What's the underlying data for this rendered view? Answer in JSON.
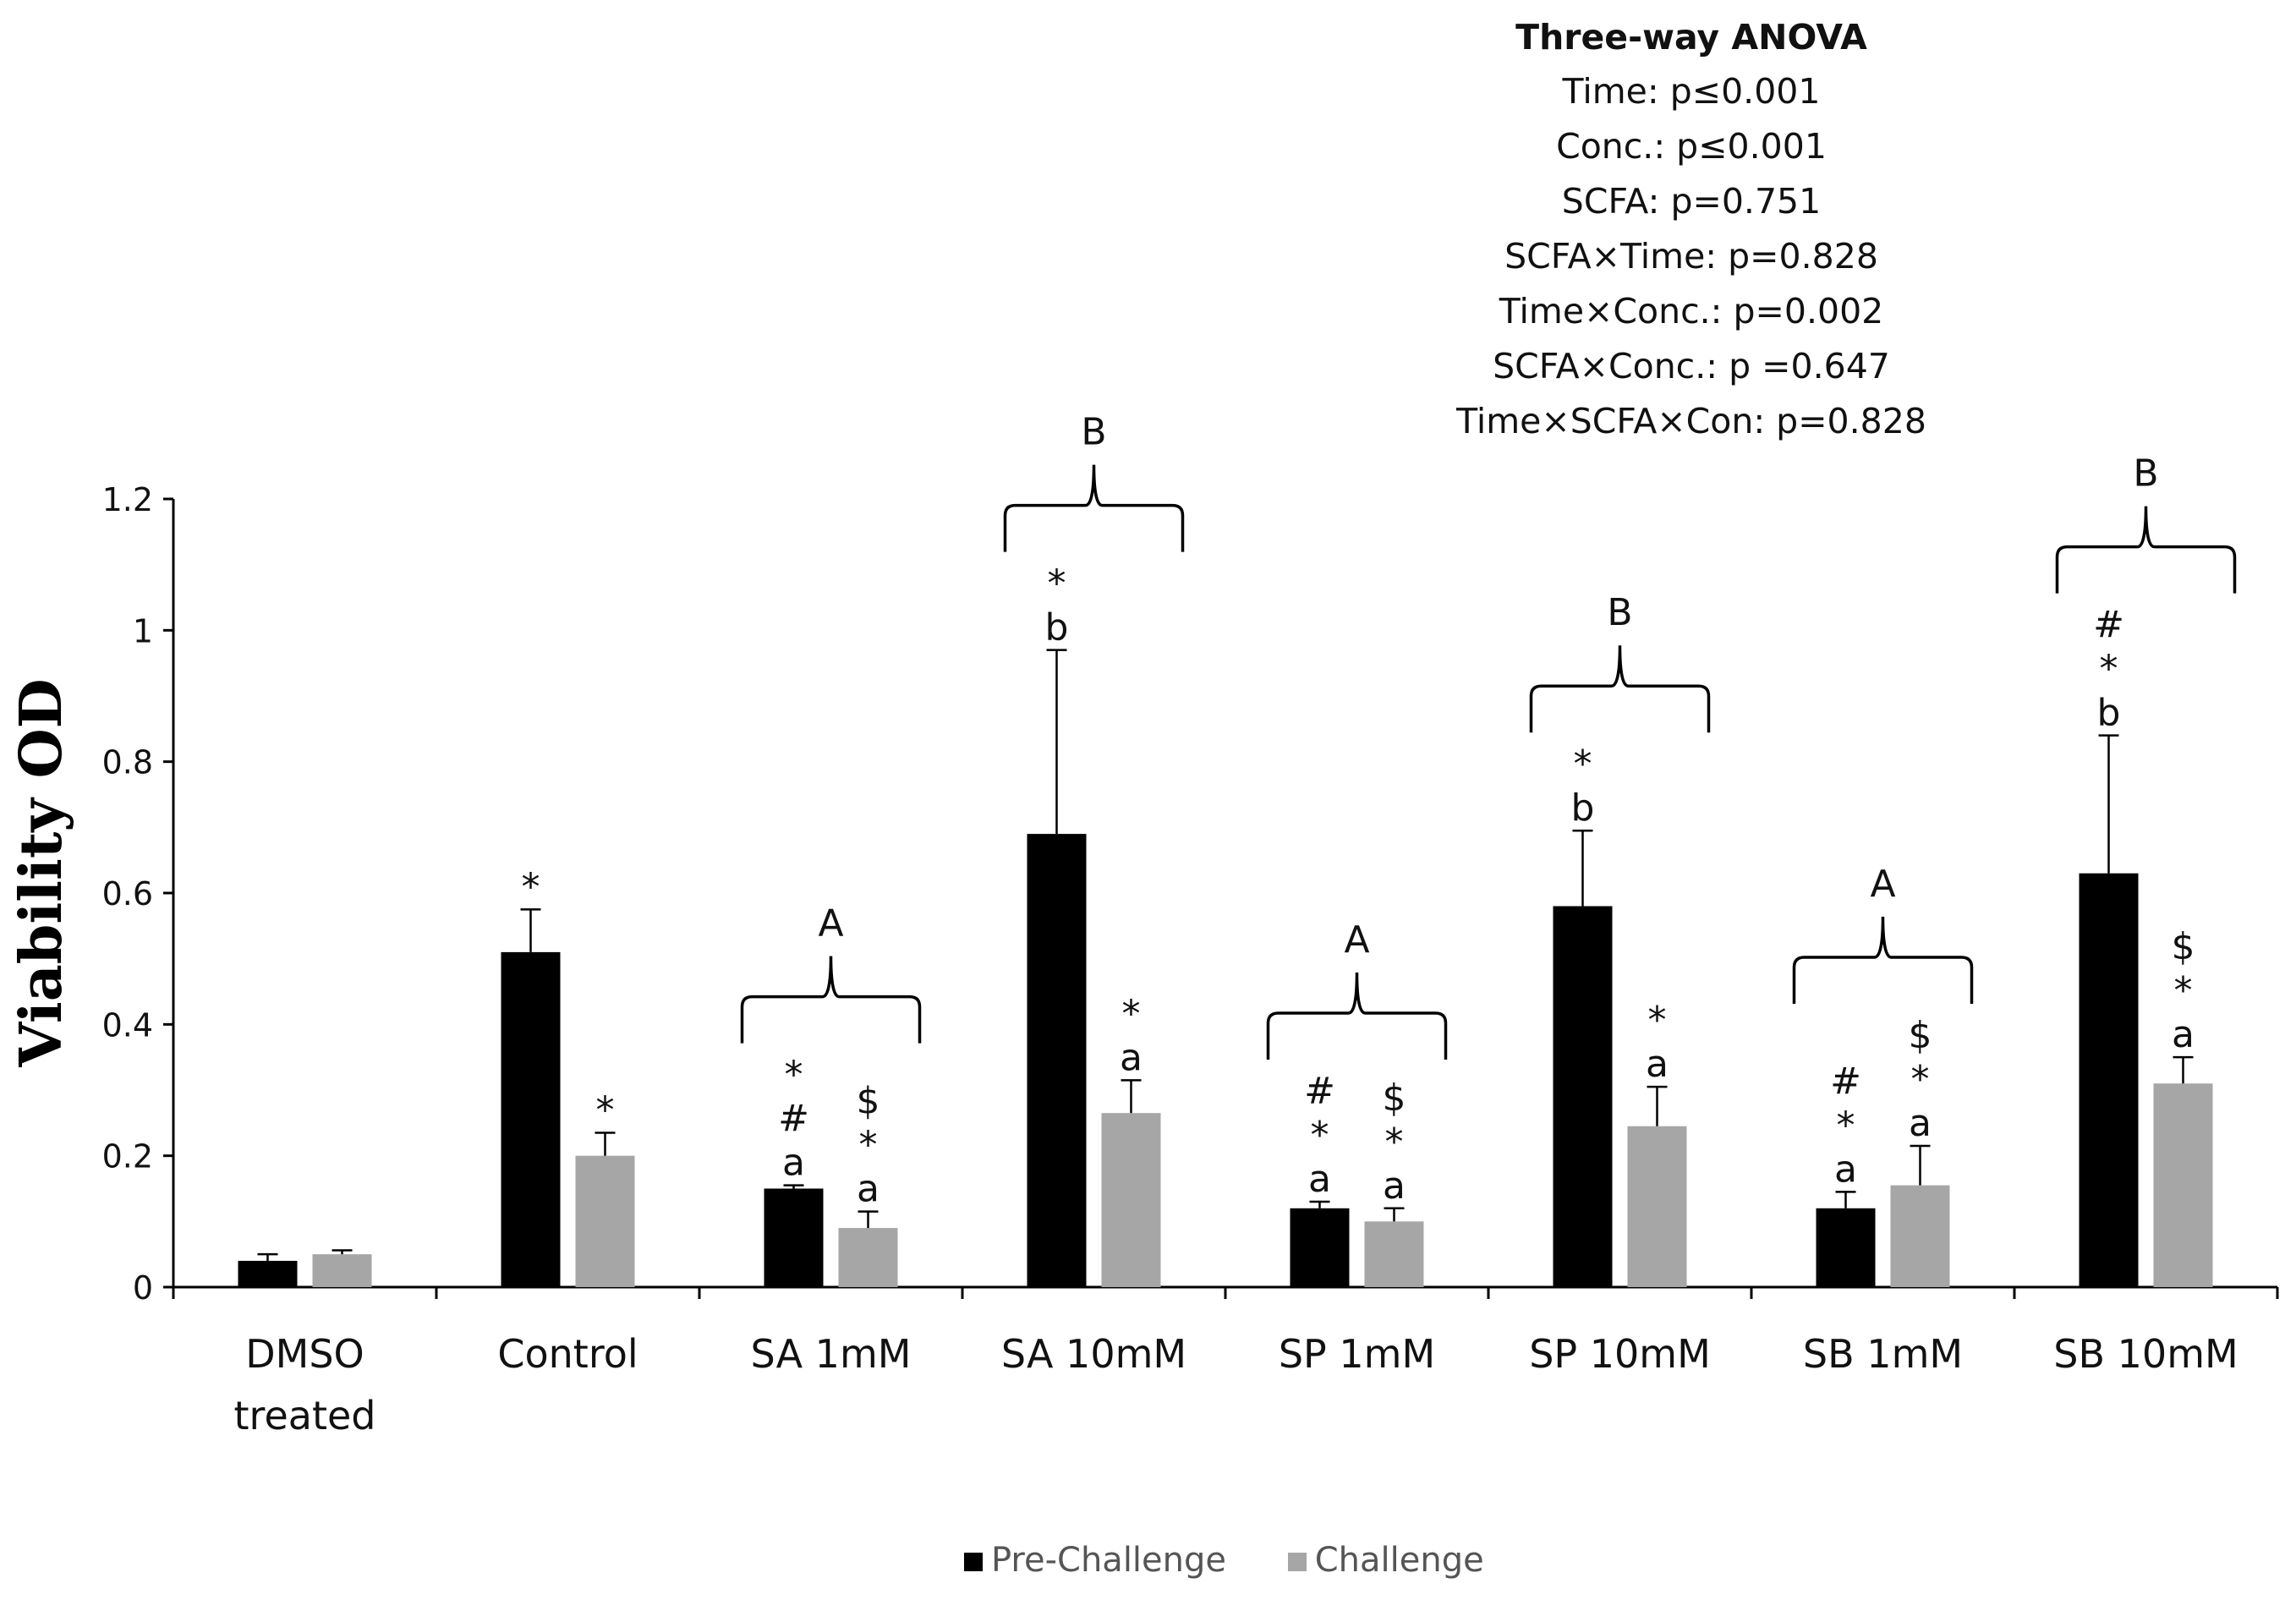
{
  "stats": {
    "title": "Three-way ANOVA",
    "lines": [
      "Time: p≤0.001",
      "Conc.: p≤0.001",
      "SCFA: p=0.751",
      "SCFA×Time: p=0.828",
      "Time×Conc.: p=0.002",
      "SCFA×Conc.: p =0.647",
      "Time×SCFA×Con: p=0.828"
    ]
  },
  "chart_data": {
    "type": "bar",
    "title": "",
    "xlabel": "",
    "ylabel": "Viability OD",
    "ylim": [
      0,
      1.2
    ],
    "yticks": [
      "0",
      "0.2",
      "0.4",
      "0.6",
      "0.8",
      "1",
      "1.2"
    ],
    "categories": [
      [
        "DMSO",
        "treated"
      ],
      [
        "Control"
      ],
      [
        "SA 1mM"
      ],
      [
        "SA 10mM"
      ],
      [
        "SP 1mM"
      ],
      [
        "SP 10mM"
      ],
      [
        "SB 1mM"
      ],
      [
        "SB 10mM"
      ]
    ],
    "series": [
      {
        "name": "Pre-Challenge",
        "color": "#000000",
        "values": [
          0.04,
          0.51,
          0.15,
          0.69,
          0.12,
          0.58,
          0.12,
          0.63
        ],
        "errors": [
          0.01,
          0.065,
          0.005,
          0.28,
          0.01,
          0.115,
          0.025,
          0.21
        ],
        "annotations": [
          [],
          [
            "*"
          ],
          [
            "*",
            "#",
            "a"
          ],
          [
            "*",
            "b"
          ],
          [
            "#",
            "*",
            "a"
          ],
          [
            "*",
            "b"
          ],
          [
            "#",
            "*",
            "a"
          ],
          [
            "#",
            "*",
            "b"
          ]
        ]
      },
      {
        "name": "Challenge",
        "color": "#a6a6a6",
        "values": [
          0.05,
          0.2,
          0.09,
          0.265,
          0.1,
          0.245,
          0.155,
          0.31
        ],
        "errors": [
          0.006,
          0.035,
          0.025,
          0.05,
          0.02,
          0.06,
          0.06,
          0.04
        ],
        "annotations": [
          [],
          [
            "*"
          ],
          [
            "$",
            "*",
            "a"
          ],
          [
            "*",
            "a"
          ],
          [
            "$",
            "*",
            "a"
          ],
          [
            "*",
            "a"
          ],
          [
            "$",
            "*",
            "a"
          ],
          [
            "$",
            "*",
            "a"
          ]
        ]
      }
    ],
    "group_braces": [
      "",
      "",
      "A",
      "B",
      "A",
      "B",
      "A",
      "B"
    ]
  }
}
